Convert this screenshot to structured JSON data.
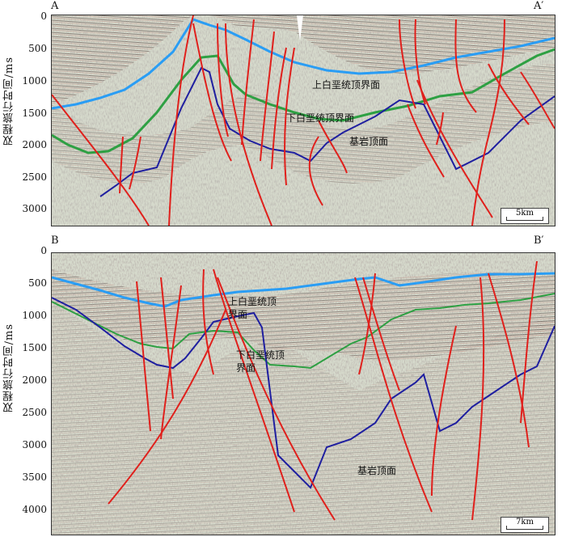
{
  "panelA": {
    "left_label": "A",
    "right_label": "A′",
    "y_axis_label": "双程旅行时间/ms",
    "y_ticks": [
      "0",
      "500",
      "1000",
      "1500",
      "2000",
      "2500",
      "3000"
    ],
    "horizon_labels": [
      "上白垩统顶界面",
      "下白垩统顶界面",
      "基岩顶面"
    ],
    "scale_label": "5km"
  },
  "panelB": {
    "left_label": "B",
    "right_label": "B′",
    "y_axis_label": "双程旅行时间/ms",
    "y_ticks": [
      "0",
      "500",
      "1000",
      "1500",
      "2000",
      "2500",
      "3000",
      "3500",
      "4000"
    ],
    "horizon_labels": [
      "上白垩统顶界面",
      "下白垩统顶界面",
      "基岩顶面"
    ],
    "scale_label": "7km"
  },
  "colors": {
    "upper_cretaceous": "#2a9df4",
    "lower_cretaceous": "#2ea043",
    "basement": "#1f1fa0",
    "fault": "#e0201c"
  }
}
